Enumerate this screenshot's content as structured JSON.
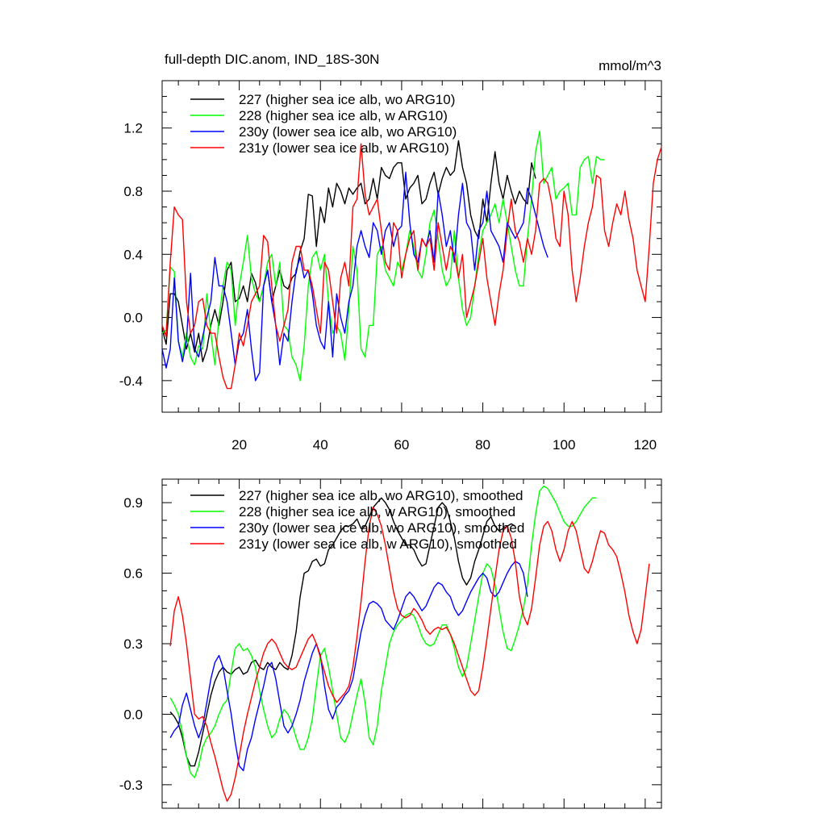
{
  "chart_data": [
    {
      "type": "line",
      "title": "full-depth DIC.anom, IND_18S-30N",
      "units": "mmol/m^3",
      "xlabel": "",
      "ylabel": "",
      "xlim": [
        1,
        124
      ],
      "ylim": [
        -0.6,
        1.5
      ],
      "x_ticks": [
        20,
        40,
        60,
        80,
        100,
        120
      ],
      "x_tick_labels": [
        "20",
        "40",
        "60",
        "80",
        "100",
        "120"
      ],
      "y_ticks": [
        -0.4,
        0.0,
        0.4,
        0.8,
        1.2
      ],
      "y_tick_labels": [
        "-0.4",
        "0.0",
        "0.4",
        "0.8",
        "1.2"
      ],
      "legend_position": "top-left",
      "series": [
        {
          "name": "227 (higher sea ice alb, wo ARG10)",
          "color": "#000000",
          "x_start": 1,
          "values": [
            -0.07,
            -0.17,
            0.15,
            0.15,
            0.1,
            -0.05,
            -0.2,
            -0.1,
            -0.22,
            -0.1,
            -0.28,
            -0.2,
            -0.05,
            0.05,
            -0.05,
            0.1,
            0.3,
            0.35,
            0.1,
            0.12,
            0.2,
            0.1,
            0.28,
            0.22,
            0.1,
            0.2,
            0.3,
            0.1,
            0.2,
            0.3,
            0.2,
            0.18,
            0.25,
            0.28,
            0.42,
            0.5,
            0.78,
            0.77,
            0.45,
            0.7,
            0.6,
            0.82,
            0.7,
            0.85,
            0.8,
            0.72,
            0.82,
            0.78,
            0.82,
            0.85,
            0.72,
            0.75,
            0.88,
            0.75,
            0.95,
            0.9,
            0.88,
            0.95,
            0.98,
            0.98,
            0.75,
            0.82,
            0.85,
            0.9,
            0.72,
            0.75,
            0.85,
            0.92,
            0.78,
            0.88,
            0.95,
            0.9,
            0.93,
            1.12,
            0.95,
            0.85,
            0.65,
            0.55,
            0.5,
            0.75,
            0.6,
            0.85,
            1.05,
            0.85,
            0.75,
            0.9,
            0.8,
            0.72,
            0.8,
            0.75,
            0.72,
            0.98,
            0.88
          ]
        },
        {
          "name": "228 (higher sea ice alb, w ARG10)",
          "color": "#00ff00",
          "x_start": 1,
          "values": [
            -0.1,
            -0.08,
            0.32,
            0.29,
            -0.15,
            -0.25,
            -0.1,
            -0.25,
            -0.3,
            -0.18,
            -0.2,
            0.15,
            -0.1,
            -0.3,
            0.0,
            0.2,
            0.35,
            0.3,
            -0.05,
            0.2,
            0.35,
            0.52,
            0.25,
            0.15,
            0.1,
            0.2,
            0.35,
            0.4,
            0.2,
            0.35,
            -0.05,
            -0.08,
            -0.25,
            -0.3,
            -0.4,
            -0.18,
            0.2,
            0.38,
            0.42,
            0.3,
            0.4,
            0.1,
            -0.1,
            -0.05,
            -0.1,
            -0.27,
            0.05,
            0.45,
            0.3,
            -0.2,
            -0.25,
            -0.05,
            -0.05,
            0.4,
            0.45,
            0.3,
            0.25,
            0.2,
            0.35,
            0.3,
            0.4,
            0.55,
            0.45,
            0.3,
            0.25,
            0.4,
            0.6,
            0.68,
            0.5,
            0.3,
            0.2,
            0.25,
            0.55,
            0.25,
            0.05,
            -0.05,
            0.0,
            0.2,
            0.4,
            0.55,
            0.6,
            0.65,
            0.72,
            0.6,
            0.75,
            0.6,
            0.45,
            0.3,
            0.2,
            0.2,
            0.5,
            0.75,
            1.05,
            1.18,
            0.85,
            0.9,
            0.95,
            0.75,
            0.8,
            0.82,
            0.85,
            0.65,
            0.65,
            0.95,
            1.0,
            1.02,
            0.85,
            1.02,
            1.0,
            1.0
          ]
        },
        {
          "name": "230y (lower sea ice alb, wo ARG10)",
          "color": "#0000ff",
          "x_start": 1,
          "values": [
            -0.2,
            -0.32,
            -0.2,
            0.25,
            -0.15,
            -0.28,
            -0.15,
            0.28,
            -0.2,
            -0.25,
            -0.12,
            0.0,
            0.1,
            0.38,
            0.2,
            0.2,
            0.1,
            -0.1,
            -0.3,
            -0.15,
            -0.1,
            0.05,
            -0.2,
            -0.4,
            -0.35,
            0.2,
            0.3,
            0.1,
            -0.05,
            -0.3,
            -0.1,
            -0.15,
            0.1,
            0.3,
            0.38,
            0.25,
            0.3,
            0.15,
            -0.05,
            -0.15,
            -0.2,
            0.1,
            -0.25,
            0.15,
            0.0,
            -0.1,
            0.1,
            0.2,
            0.45,
            0.55,
            0.45,
            0.38,
            0.6,
            0.55,
            0.4,
            0.55,
            0.6,
            0.45,
            0.55,
            0.58,
            0.92,
            0.6,
            0.4,
            0.35,
            0.5,
            0.45,
            0.55,
            0.35,
            0.8,
            0.65,
            0.45,
            0.55,
            0.35,
            0.65,
            0.85,
            0.6,
            0.55,
            0.3,
            0.55,
            0.6,
            0.8,
            0.55,
            0.5,
            0.45,
            0.35,
            0.6,
            0.55,
            0.5,
            0.55,
            0.6,
            0.82,
            0.75,
            0.65,
            0.55,
            0.45,
            0.38
          ]
        },
        {
          "name": "231y (lower sea ice alb, w ARG10)",
          "color": "#ff0000",
          "x_start": 1,
          "values": [
            -0.05,
            -0.12,
            0.35,
            0.7,
            0.65,
            0.62,
            0.1,
            -0.1,
            -0.05,
            0.1,
            0.12,
            -0.05,
            -0.1,
            -0.1,
            -0.25,
            -0.38,
            -0.45,
            -0.45,
            -0.3,
            -0.1,
            -0.18,
            -0.05,
            0.1,
            0.15,
            0.2,
            0.52,
            0.48,
            0.2,
            -0.05,
            -0.15,
            -0.05,
            0.05,
            0.35,
            0.45,
            0.45,
            0.3,
            0.3,
            0.2,
            0.05,
            -0.1,
            0.35,
            0.3,
            0.1,
            -0.1,
            0.25,
            0.35,
            0.2,
            0.7,
            0.75,
            1.1,
            0.78,
            0.65,
            0.7,
            0.75,
            0.55,
            0.35,
            0.3,
            0.6,
            0.55,
            0.25,
            0.4,
            0.5,
            0.55,
            0.3,
            0.5,
            0.45,
            0.5,
            0.3,
            0.6,
            0.45,
            0.3,
            0.45,
            0.4,
            0.25,
            0.4,
            0.0,
            0.1,
            0.2,
            0.35,
            0.5,
            0.25,
            0.1,
            -0.05,
            0.15,
            0.3,
            0.55,
            0.75,
            0.55,
            0.48,
            0.35,
            0.5,
            0.4,
            0.55,
            0.85,
            0.88,
            0.85,
            0.72,
            0.5,
            0.45,
            0.8,
            0.65,
            0.3,
            0.1,
            0.25,
            0.45,
            0.6,
            0.7,
            0.9,
            0.88,
            0.55,
            0.45,
            0.6,
            0.72,
            0.65,
            0.8,
            0.62,
            0.5,
            0.3,
            0.2,
            0.1,
            0.45,
            0.85,
            1.0,
            1.08
          ]
        }
      ]
    },
    {
      "type": "line",
      "title": "",
      "xlabel": "",
      "ylabel": "",
      "xlim": [
        1,
        124
      ],
      "ylim": [
        -0.4,
        1.0
      ],
      "x_ticks": [
        20,
        40,
        60,
        80,
        100,
        120
      ],
      "x_tick_labels": [],
      "y_ticks": [
        -0.3,
        0.0,
        0.3,
        0.6,
        0.9
      ],
      "y_tick_labels": [
        "-0.3",
        "0.0",
        "0.3",
        "0.6",
        "0.9"
      ],
      "legend_position": "top-left",
      "series": [
        {
          "name": "227 (higher sea ice alb, wo ARG10), smoothed",
          "color": "#000000",
          "x_start": 3,
          "values": [
            0.01,
            -0.01,
            -0.04,
            -0.1,
            -0.18,
            -0.22,
            -0.22,
            -0.16,
            -0.08,
            0.0,
            0.08,
            0.14,
            0.18,
            0.2,
            0.18,
            0.17,
            0.19,
            0.2,
            0.17,
            0.18,
            0.22,
            0.23,
            0.2,
            0.19,
            0.22,
            0.2,
            0.19,
            0.22,
            0.2,
            0.19,
            0.25,
            0.35,
            0.5,
            0.6,
            0.61,
            0.65,
            0.66,
            0.63,
            0.64,
            0.7,
            0.72,
            0.75,
            0.78,
            0.8,
            0.8,
            0.81,
            0.83,
            0.79,
            0.8,
            0.84,
            0.88,
            0.9,
            0.92,
            0.9,
            0.87,
            0.82,
            0.78,
            0.75,
            0.72,
            0.72,
            0.7,
            0.66,
            0.63,
            0.64,
            0.72,
            0.8,
            0.88,
            0.9,
            0.88,
            0.82,
            0.75,
            0.65,
            0.58,
            0.55,
            0.58,
            0.65,
            0.7,
            0.76,
            0.82,
            0.84,
            0.8,
            0.78,
            0.79,
            0.8,
            0.81,
            0.8
          ]
        },
        {
          "name": "228 (higher sea ice alb, w ARG10), smoothed",
          "color": "#00ff00",
          "x_start": 3,
          "values": [
            0.07,
            0.04,
            0.0,
            -0.08,
            -0.18,
            -0.25,
            -0.27,
            -0.22,
            -0.14,
            -0.1,
            -0.08,
            -0.05,
            0.0,
            0.04,
            0.06,
            0.18,
            0.28,
            0.3,
            0.27,
            0.28,
            0.25,
            0.2,
            0.1,
            0.02,
            -0.05,
            -0.1,
            -0.08,
            -0.02,
            0.02,
            0.0,
            -0.04,
            -0.1,
            -0.15,
            -0.15,
            -0.1,
            -0.02,
            0.12,
            0.25,
            0.28,
            0.2,
            0.1,
            0.0,
            -0.1,
            -0.12,
            -0.08,
            0.0,
            0.08,
            0.15,
            0.05,
            -0.1,
            -0.13,
            -0.05,
            0.1,
            0.2,
            0.3,
            0.35,
            0.38,
            0.4,
            0.42,
            0.43,
            0.42,
            0.38,
            0.33,
            0.3,
            0.29,
            0.3,
            0.34,
            0.38,
            0.38,
            0.34,
            0.28,
            0.2,
            0.16,
            0.2,
            0.3,
            0.4,
            0.5,
            0.6,
            0.64,
            0.62,
            0.55,
            0.45,
            0.35,
            0.28,
            0.27,
            0.32,
            0.38,
            0.45,
            0.55,
            0.72,
            0.85,
            0.95,
            0.97,
            0.96,
            0.93,
            0.9,
            0.86,
            0.82,
            0.8,
            0.8,
            0.82,
            0.85,
            0.88,
            0.9,
            0.92,
            0.92
          ]
        },
        {
          "name": "230y (lower sea ice alb, wo ARG10), smoothed",
          "color": "#0000ff",
          "x_start": 3,
          "values": [
            -0.1,
            -0.07,
            -0.05,
            0.04,
            0.09,
            0.02,
            -0.05,
            -0.1,
            -0.05,
            0.05,
            0.15,
            0.22,
            0.25,
            0.2,
            0.1,
            0.0,
            -0.12,
            -0.22,
            -0.24,
            -0.15,
            -0.1,
            -0.02,
            0.05,
            0.12,
            0.2,
            0.22,
            0.15,
            0.05,
            -0.05,
            -0.08,
            -0.05,
            0.0,
            0.06,
            0.14,
            0.2,
            0.26,
            0.3,
            0.25,
            0.12,
            0.02,
            -0.02,
            0.03,
            0.05,
            0.08,
            0.1,
            0.15,
            0.25,
            0.35,
            0.42,
            0.47,
            0.48,
            0.47,
            0.45,
            0.4,
            0.38,
            0.36,
            0.4,
            0.45,
            0.5,
            0.52,
            0.5,
            0.47,
            0.44,
            0.46,
            0.5,
            0.54,
            0.56,
            0.55,
            0.52,
            0.5,
            0.45,
            0.42,
            0.44,
            0.48,
            0.52,
            0.55,
            0.58,
            0.6,
            0.58,
            0.52,
            0.5,
            0.52,
            0.56,
            0.6,
            0.63,
            0.65,
            0.64,
            0.6,
            0.5
          ]
        },
        {
          "name": "231y (lower sea ice alb, w ARG10), smoothed",
          "color": "#ff0000",
          "x_start": 3,
          "values": [
            0.29,
            0.44,
            0.5,
            0.42,
            0.3,
            0.15,
            0.0,
            -0.02,
            -0.01,
            -0.05,
            -0.12,
            -0.18,
            -0.25,
            -0.32,
            -0.37,
            -0.34,
            -0.27,
            -0.18,
            -0.08,
            0.0,
            0.07,
            0.14,
            0.2,
            0.26,
            0.3,
            0.32,
            0.3,
            0.26,
            0.22,
            0.2,
            0.19,
            0.2,
            0.24,
            0.28,
            0.32,
            0.34,
            0.3,
            0.24,
            0.18,
            0.12,
            0.08,
            0.05,
            0.07,
            0.09,
            0.12,
            0.2,
            0.33,
            0.48,
            0.65,
            0.8,
            0.88,
            0.85,
            0.8,
            0.72,
            0.62,
            0.52,
            0.45,
            0.42,
            0.41,
            0.42,
            0.45,
            0.43,
            0.4,
            0.36,
            0.34,
            0.36,
            0.37,
            0.36,
            0.37,
            0.34,
            0.3,
            0.25,
            0.2,
            0.15,
            0.1,
            0.08,
            0.1,
            0.2,
            0.32,
            0.45,
            0.58,
            0.7,
            0.78,
            0.8,
            0.75,
            0.65,
            0.5,
            0.42,
            0.38,
            0.45,
            0.58,
            0.72,
            0.8,
            0.82,
            0.78,
            0.7,
            0.65,
            0.7,
            0.78,
            0.82,
            0.78,
            0.7,
            0.62,
            0.6,
            0.65,
            0.72,
            0.78,
            0.77,
            0.72,
            0.7,
            0.67,
            0.6,
            0.52,
            0.42,
            0.35,
            0.3,
            0.36,
            0.5,
            0.64
          ]
        }
      ]
    }
  ]
}
